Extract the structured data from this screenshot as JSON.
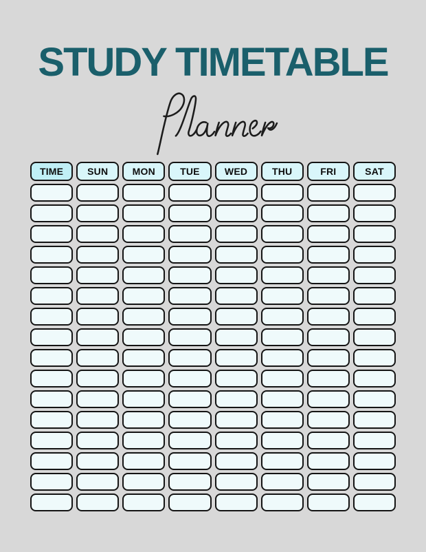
{
  "page": {
    "background": "#d8d8d8"
  },
  "header": {
    "title": "STUDY TIMETABLE",
    "subtitle": "Planner",
    "title_color": "#1a5f6b",
    "subtitle_color": "#1c1c1c"
  },
  "table": {
    "columns": [
      "TIME",
      "SUN",
      "MON",
      "TUE",
      "WED",
      "THU",
      "FRI",
      "SAT"
    ],
    "colors": {
      "time_header_fill": "#c0eff6",
      "day_header_fill": "#d9f6fa",
      "cell_fill": "#effafb",
      "border": "#141414"
    },
    "rows": [
      [
        "",
        "",
        "",
        "",
        "",
        "",
        "",
        ""
      ],
      [
        "",
        "",
        "",
        "",
        "",
        "",
        "",
        ""
      ],
      [
        "",
        "",
        "",
        "",
        "",
        "",
        "",
        ""
      ],
      [
        "",
        "",
        "",
        "",
        "",
        "",
        "",
        ""
      ],
      [
        "",
        "",
        "",
        "",
        "",
        "",
        "",
        ""
      ],
      [
        "",
        "",
        "",
        "",
        "",
        "",
        "",
        ""
      ],
      [
        "",
        "",
        "",
        "",
        "",
        "",
        "",
        ""
      ],
      [
        "",
        "",
        "",
        "",
        "",
        "",
        "",
        ""
      ],
      [
        "",
        "",
        "",
        "",
        "",
        "",
        "",
        ""
      ],
      [
        "",
        "",
        "",
        "",
        "",
        "",
        "",
        ""
      ],
      [
        "",
        "",
        "",
        "",
        "",
        "",
        "",
        ""
      ],
      [
        "",
        "",
        "",
        "",
        "",
        "",
        "",
        ""
      ],
      [
        "",
        "",
        "",
        "",
        "",
        "",
        "",
        ""
      ],
      [
        "",
        "",
        "",
        "",
        "",
        "",
        "",
        ""
      ],
      [
        "",
        "",
        "",
        "",
        "",
        "",
        "",
        ""
      ],
      [
        "",
        "",
        "",
        "",
        "",
        "",
        "",
        ""
      ]
    ]
  }
}
